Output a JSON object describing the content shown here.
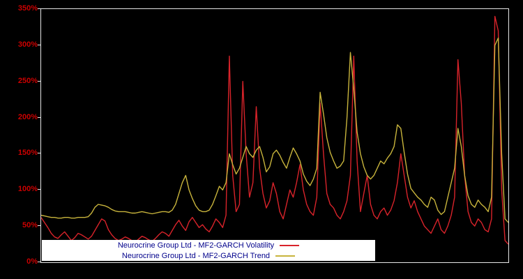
{
  "chart_data": {
    "type": "line",
    "title": "",
    "xlabel": "",
    "ylabel": "",
    "ylim": [
      0,
      350
    ],
    "y_tick_values": [
      0,
      50,
      100,
      150,
      200,
      250,
      300,
      350
    ],
    "y_tick_labels": [
      "0%",
      "50%",
      "100%",
      "150%",
      "200%",
      "250%",
      "300%",
      "350%"
    ],
    "grid": false,
    "legend_position": "bottom-left",
    "background_color": "#000000",
    "axis_label_color": "#cc0000",
    "axis_border_color": "#e6e6e6",
    "legend_text_color": "#00008b",
    "series": [
      {
        "name": "Neurocrine Group Ltd - MF2-GARCH Volatility",
        "color": "#d8232a",
        "values": [
          62,
          55,
          48,
          40,
          35,
          33,
          38,
          42,
          36,
          30,
          34,
          40,
          38,
          35,
          32,
          36,
          44,
          52,
          60,
          57,
          45,
          38,
          33,
          30,
          32,
          35,
          33,
          30,
          28,
          32,
          36,
          34,
          31,
          29,
          33,
          38,
          42,
          40,
          36,
          44,
          52,
          58,
          50,
          44,
          56,
          62,
          55,
          48,
          52,
          46,
          42,
          50,
          60,
          55,
          48,
          65,
          285,
          120,
          70,
          80,
          250,
          150,
          90,
          110,
          215,
          130,
          95,
          75,
          85,
          110,
          95,
          70,
          60,
          80,
          100,
          90,
          110,
          135,
          100,
          80,
          70,
          65,
          90,
          220,
          150,
          95,
          80,
          75,
          65,
          60,
          70,
          85,
          120,
          285,
          140,
          70,
          95,
          120,
          80,
          65,
          60,
          70,
          75,
          65,
          72,
          85,
          110,
          150,
          120,
          90,
          75,
          85,
          70,
          60,
          50,
          45,
          40,
          50,
          60,
          45,
          40,
          50,
          65,
          90,
          280,
          220,
          120,
          70,
          55,
          50,
          60,
          55,
          45,
          42,
          60,
          340,
          320,
          100,
          30,
          25
        ]
      },
      {
        "name": "Neurocrine Group Ltd - MF2-GARCH Trend",
        "color": "#c8b43c",
        "values": [
          65,
          64,
          63,
          62,
          62,
          61,
          61,
          62,
          62,
          61,
          61,
          62,
          62,
          62,
          63,
          68,
          76,
          80,
          79,
          78,
          76,
          73,
          71,
          70,
          70,
          70,
          69,
          68,
          68,
          69,
          70,
          69,
          68,
          67,
          68,
          69,
          70,
          70,
          69,
          72,
          80,
          95,
          110,
          120,
          100,
          88,
          78,
          72,
          70,
          70,
          72,
          80,
          92,
          105,
          100,
          110,
          150,
          135,
          122,
          130,
          145,
          160,
          150,
          145,
          155,
          160,
          145,
          125,
          132,
          150,
          155,
          148,
          138,
          130,
          145,
          158,
          150,
          140,
          122,
          112,
          106,
          115,
          130,
          235,
          205,
          172,
          152,
          140,
          130,
          133,
          140,
          200,
          290,
          240,
          180,
          150,
          132,
          120,
          115,
          120,
          130,
          140,
          136,
          144,
          150,
          160,
          190,
          185,
          152,
          122,
          102,
          96,
          90,
          86,
          80,
          76,
          90,
          86,
          72,
          66,
          70,
          90,
          110,
          130,
          185,
          160,
          120,
          92,
          80,
          76,
          86,
          80,
          76,
          70,
          90,
          300,
          310,
          150,
          60,
          55
        ]
      }
    ],
    "legend": [
      {
        "label": "Neurocrine Group Ltd - MF2-GARCH Volatility",
        "color": "#d8232a"
      },
      {
        "label": "Neurocrine Group Ltd - MF2-GARCH Trend",
        "color": "#c8b43c"
      }
    ]
  }
}
